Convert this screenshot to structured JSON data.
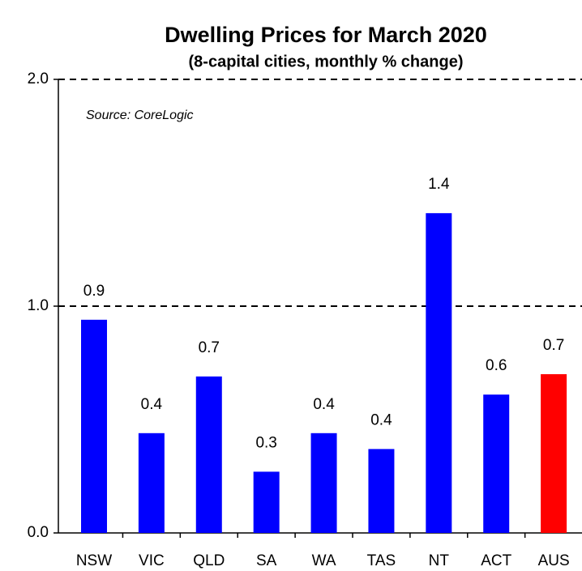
{
  "chart_data": {
    "type": "bar",
    "title": "Dwelling Prices for March 2020",
    "subtitle": "(8-capital cities, monthly % change)",
    "annotation": "Source: CoreLogic",
    "categories": [
      "NSW",
      "VIC",
      "QLD",
      "SA",
      "WA",
      "TAS",
      "NT",
      "ACT",
      "AUS"
    ],
    "values": [
      0.94,
      0.44,
      0.69,
      0.27,
      0.44,
      0.37,
      1.41,
      0.61,
      0.7
    ],
    "value_labels": [
      "0.9",
      "0.4",
      "0.7",
      "0.3",
      "0.4",
      "0.4",
      "1.4",
      "0.6",
      "0.7"
    ],
    "colors": [
      "#0000ff",
      "#0000ff",
      "#0000ff",
      "#0000ff",
      "#0000ff",
      "#0000ff",
      "#0000ff",
      "#0000ff",
      "#ff0000"
    ],
    "ylim": [
      0,
      2
    ],
    "yticks": [
      {
        "value": 0,
        "label": "0.0"
      },
      {
        "value": 1,
        "label": "1.0"
      },
      {
        "value": 2,
        "label": "2.0"
      }
    ],
    "grid": true
  }
}
